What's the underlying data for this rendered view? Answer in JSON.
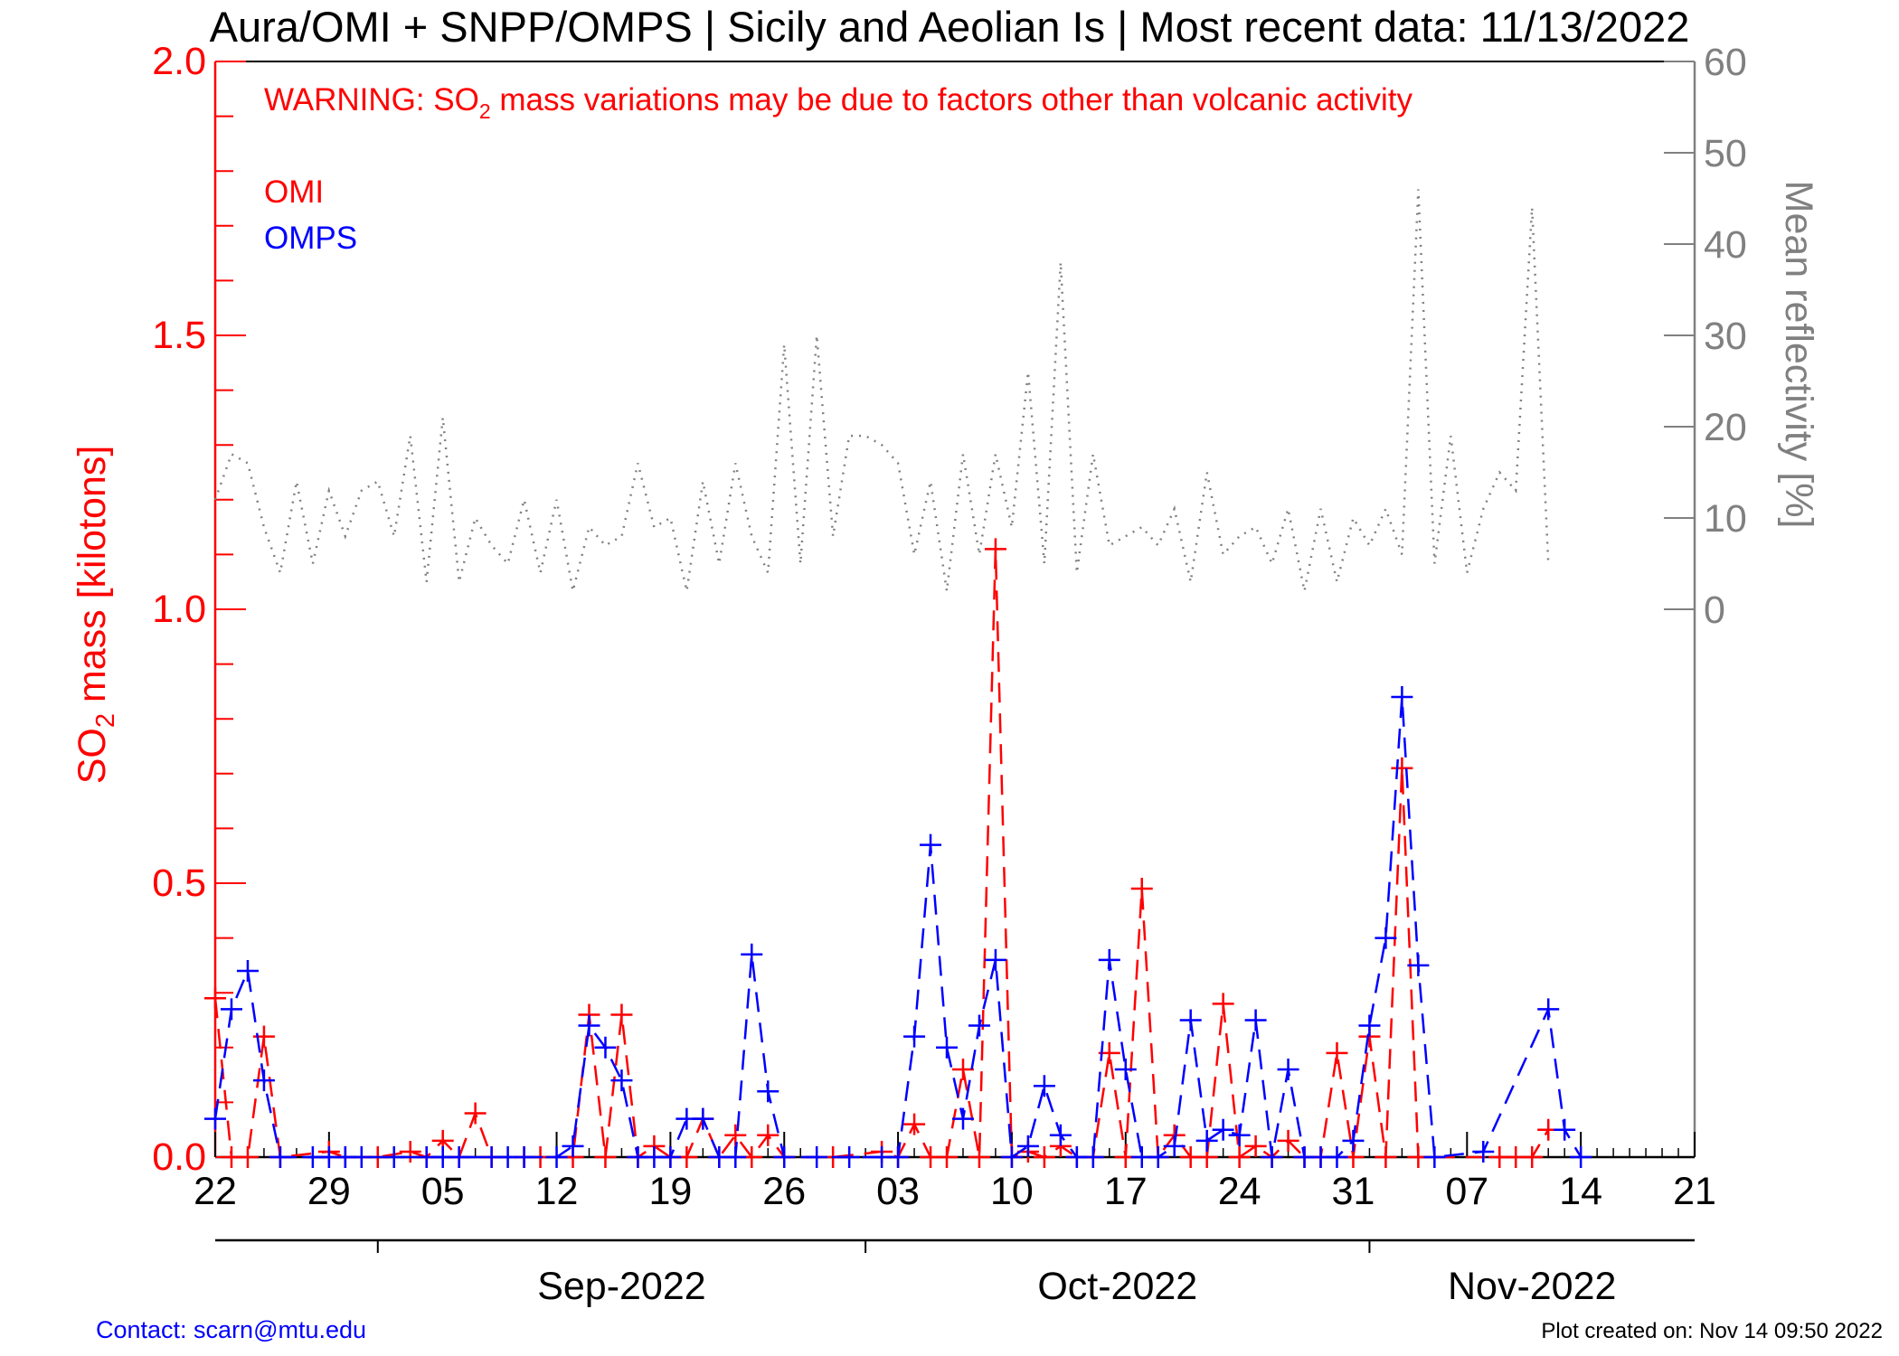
{
  "chart_data": {
    "type": "line",
    "title": "Aura/OMI + SNPP/OMPS | Sicily and Aeolian Is | Most recent data: 11/13/2022",
    "warning": {
      "prefix": "WARNING: SO",
      "subscript": "2",
      "suffix": " mass variations may be due to factors other than volcanic activity"
    },
    "ylabel_left": {
      "prefix": "SO",
      "subscript": "2",
      "suffix": " mass [kilotons]"
    },
    "ylabel_right": "Mean reflectivity [%]",
    "x_axis": {
      "range": [
        "2022-08-22",
        "2022-11-21"
      ],
      "tick_labels": [
        "22",
        "29",
        "05",
        "12",
        "19",
        "26",
        "03",
        "10",
        "17",
        "24",
        "31",
        "07",
        "14",
        "21"
      ],
      "tick_dates": [
        "2022-08-22",
        "2022-08-29",
        "2022-09-05",
        "2022-09-12",
        "2022-09-19",
        "2022-09-26",
        "2022-10-03",
        "2022-10-10",
        "2022-10-17",
        "2022-10-24",
        "2022-10-31",
        "2022-11-07",
        "2022-11-14",
        "2022-11-21"
      ],
      "month_labels": [
        "Sep-2022",
        "Oct-2022",
        "Nov-2022"
      ],
      "month_starts": [
        "2022-09-01",
        "2022-10-01",
        "2022-11-01"
      ]
    },
    "y_left": {
      "range": [
        0,
        2.0
      ],
      "tick_labels": [
        "0.0",
        "0.5",
        "1.0",
        "1.5",
        "2.0"
      ],
      "tick_values": [
        0,
        0.5,
        1.0,
        1.5,
        2.0
      ]
    },
    "y_right": {
      "range": [
        -60,
        60
      ],
      "tick_labels": [
        "0",
        "10",
        "20",
        "30",
        "40",
        "50",
        "60"
      ],
      "tick_values": [
        0,
        10,
        20,
        30,
        40,
        50,
        60
      ]
    },
    "series": [
      {
        "name": "OMI",
        "color": "#ff0000",
        "axis": "left",
        "style": "dashed",
        "marker": "plus",
        "points": [
          [
            "2022-08-22",
            0.29
          ],
          [
            "2022-08-23",
            0.0
          ],
          [
            "2022-08-24",
            0.0
          ],
          [
            "2022-08-25",
            0.22
          ],
          [
            "2022-08-26",
            0.0
          ],
          [
            "2022-08-29",
            0.01
          ],
          [
            "2022-08-30",
            0.0
          ],
          [
            "2022-09-01",
            0.0
          ],
          [
            "2022-09-03",
            0.01
          ],
          [
            "2022-09-04",
            0.0
          ],
          [
            "2022-09-05",
            0.03
          ],
          [
            "2022-09-06",
            0.0
          ],
          [
            "2022-09-07",
            0.08
          ],
          [
            "2022-09-08",
            0.0
          ],
          [
            "2022-09-10",
            0.0
          ],
          [
            "2022-09-11",
            0.0
          ],
          [
            "2022-09-13",
            0.0
          ],
          [
            "2022-09-14",
            0.26
          ],
          [
            "2022-09-15",
            0.0
          ],
          [
            "2022-09-16",
            0.26
          ],
          [
            "2022-09-17",
            0.0
          ],
          [
            "2022-09-18",
            0.02
          ],
          [
            "2022-09-19",
            0.0
          ],
          [
            "2022-09-20",
            0.0
          ],
          [
            "2022-09-21",
            0.07
          ],
          [
            "2022-09-22",
            0.0
          ],
          [
            "2022-09-23",
            0.04
          ],
          [
            "2022-09-24",
            0.0
          ],
          [
            "2022-09-25",
            0.04
          ],
          [
            "2022-09-26",
            0.0
          ],
          [
            "2022-09-29",
            0.0
          ],
          [
            "2022-10-02",
            0.01
          ],
          [
            "2022-10-03",
            0.0
          ],
          [
            "2022-10-04",
            0.06
          ],
          [
            "2022-10-05",
            0.0
          ],
          [
            "2022-10-06",
            0.0
          ],
          [
            "2022-10-07",
            0.16
          ],
          [
            "2022-10-08",
            0.0
          ],
          [
            "2022-10-09",
            1.11
          ],
          [
            "2022-10-10",
            0.0
          ],
          [
            "2022-10-11",
            0.01
          ],
          [
            "2022-10-12",
            0.0
          ],
          [
            "2022-10-13",
            0.02
          ],
          [
            "2022-10-14",
            0.0
          ],
          [
            "2022-10-15",
            0.0
          ],
          [
            "2022-10-16",
            0.19
          ],
          [
            "2022-10-17",
            0.0
          ],
          [
            "2022-10-18",
            0.49
          ],
          [
            "2022-10-19",
            0.0
          ],
          [
            "2022-10-20",
            0.04
          ],
          [
            "2022-10-21",
            0.0
          ],
          [
            "2022-10-22",
            0.0
          ],
          [
            "2022-10-23",
            0.28
          ],
          [
            "2022-10-24",
            0.0
          ],
          [
            "2022-10-25",
            0.02
          ],
          [
            "2022-10-26",
            0.0
          ],
          [
            "2022-10-27",
            0.03
          ],
          [
            "2022-10-28",
            0.0
          ],
          [
            "2022-10-29",
            0.0
          ],
          [
            "2022-10-30",
            0.19
          ],
          [
            "2022-10-31",
            0.0
          ],
          [
            "2022-11-01",
            0.22
          ],
          [
            "2022-11-02",
            0.0
          ],
          [
            "2022-11-03",
            0.71
          ],
          [
            "2022-11-04",
            0.0
          ],
          [
            "2022-11-09",
            0.0
          ],
          [
            "2022-11-10",
            0.0
          ],
          [
            "2022-11-11",
            0.0
          ],
          [
            "2022-11-12",
            0.05
          ]
        ]
      },
      {
        "name": "OMPS",
        "color": "#0000ff",
        "axis": "left",
        "style": "dashed",
        "marker": "plus",
        "points": [
          [
            "2022-08-22",
            0.07
          ],
          [
            "2022-08-23",
            0.27
          ],
          [
            "2022-08-24",
            0.34
          ],
          [
            "2022-08-25",
            0.14
          ],
          [
            "2022-08-26",
            0.0
          ],
          [
            "2022-08-28",
            0.0
          ],
          [
            "2022-08-29",
            0.0
          ],
          [
            "2022-08-30",
            0.0
          ],
          [
            "2022-08-31",
            0.0
          ],
          [
            "2022-09-02",
            0.0
          ],
          [
            "2022-09-04",
            0.0
          ],
          [
            "2022-09-05",
            0.0
          ],
          [
            "2022-09-06",
            0.0
          ],
          [
            "2022-09-08",
            0.0
          ],
          [
            "2022-09-09",
            0.0
          ],
          [
            "2022-09-10",
            0.0
          ],
          [
            "2022-09-12",
            0.0
          ],
          [
            "2022-09-13",
            0.02
          ],
          [
            "2022-09-14",
            0.24
          ],
          [
            "2022-09-15",
            0.2
          ],
          [
            "2022-09-16",
            0.14
          ],
          [
            "2022-09-17",
            0.0
          ],
          [
            "2022-09-18",
            0.0
          ],
          [
            "2022-09-19",
            0.0
          ],
          [
            "2022-09-20",
            0.07
          ],
          [
            "2022-09-21",
            0.07
          ],
          [
            "2022-09-22",
            0.0
          ],
          [
            "2022-09-23",
            0.0
          ],
          [
            "2022-09-24",
            0.37
          ],
          [
            "2022-09-25",
            0.12
          ],
          [
            "2022-09-26",
            0.0
          ],
          [
            "2022-09-28",
            0.0
          ],
          [
            "2022-09-30",
            0.0
          ],
          [
            "2022-10-02",
            0.0
          ],
          [
            "2022-10-03",
            0.0
          ],
          [
            "2022-10-04",
            0.22
          ],
          [
            "2022-10-05",
            0.57
          ],
          [
            "2022-10-06",
            0.2
          ],
          [
            "2022-10-07",
            0.07
          ],
          [
            "2022-10-08",
            0.24
          ],
          [
            "2022-10-09",
            0.36
          ],
          [
            "2022-10-10",
            0.0
          ],
          [
            "2022-10-11",
            0.02
          ],
          [
            "2022-10-12",
            0.13
          ],
          [
            "2022-10-13",
            0.04
          ],
          [
            "2022-10-14",
            0.0
          ],
          [
            "2022-10-15",
            0.0
          ],
          [
            "2022-10-16",
            0.36
          ],
          [
            "2022-10-17",
            0.16
          ],
          [
            "2022-10-18",
            0.0
          ],
          [
            "2022-10-19",
            0.0
          ],
          [
            "2022-10-20",
            0.02
          ],
          [
            "2022-10-21",
            0.25
          ],
          [
            "2022-10-22",
            0.03
          ],
          [
            "2022-10-23",
            0.05
          ],
          [
            "2022-10-24",
            0.04
          ],
          [
            "2022-10-25",
            0.25
          ],
          [
            "2022-10-26",
            0.0
          ],
          [
            "2022-10-27",
            0.16
          ],
          [
            "2022-10-28",
            0.0
          ],
          [
            "2022-10-29",
            0.0
          ],
          [
            "2022-10-30",
            0.0
          ],
          [
            "2022-10-31",
            0.03
          ],
          [
            "2022-11-01",
            0.24
          ],
          [
            "2022-11-02",
            0.4
          ],
          [
            "2022-11-03",
            0.84
          ],
          [
            "2022-11-04",
            0.35
          ],
          [
            "2022-11-05",
            0.0
          ],
          [
            "2022-11-08",
            0.01
          ],
          [
            "2022-11-12",
            0.27
          ],
          [
            "2022-11-13",
            0.05
          ],
          [
            "2022-11-14",
            0.0
          ]
        ]
      },
      {
        "name": "Mean reflectivity",
        "color": "#808080",
        "axis": "right",
        "style": "dotted",
        "marker": "none",
        "points": [
          [
            "2022-08-22",
            12
          ],
          [
            "2022-08-23",
            17
          ],
          [
            "2022-08-24",
            16
          ],
          [
            "2022-08-25",
            9
          ],
          [
            "2022-08-26",
            4
          ],
          [
            "2022-08-27",
            14
          ],
          [
            "2022-08-28",
            5
          ],
          [
            "2022-08-29",
            13
          ],
          [
            "2022-08-30",
            8
          ],
          [
            "2022-08-31",
            13
          ],
          [
            "2022-09-01",
            14
          ],
          [
            "2022-09-02",
            8
          ],
          [
            "2022-09-03",
            19
          ],
          [
            "2022-09-04",
            3
          ],
          [
            "2022-09-05",
            21
          ],
          [
            "2022-09-06",
            3
          ],
          [
            "2022-09-07",
            10
          ],
          [
            "2022-09-08",
            7
          ],
          [
            "2022-09-09",
            5
          ],
          [
            "2022-09-10",
            12
          ],
          [
            "2022-09-11",
            4
          ],
          [
            "2022-09-12",
            12
          ],
          [
            "2022-09-13",
            2
          ],
          [
            "2022-09-14",
            9
          ],
          [
            "2022-09-15",
            7
          ],
          [
            "2022-09-16",
            8
          ],
          [
            "2022-09-17",
            16
          ],
          [
            "2022-09-18",
            9
          ],
          [
            "2022-09-19",
            10
          ],
          [
            "2022-09-20",
            2
          ],
          [
            "2022-09-21",
            14
          ],
          [
            "2022-09-22",
            5
          ],
          [
            "2022-09-23",
            16
          ],
          [
            "2022-09-24",
            8
          ],
          [
            "2022-09-25",
            4
          ],
          [
            "2022-09-26",
            29
          ],
          [
            "2022-09-27",
            5
          ],
          [
            "2022-09-28",
            30
          ],
          [
            "2022-09-29",
            8
          ],
          [
            "2022-09-30",
            19
          ],
          [
            "2022-10-01",
            19
          ],
          [
            "2022-10-02",
            18
          ],
          [
            "2022-10-03",
            16
          ],
          [
            "2022-10-04",
            6
          ],
          [
            "2022-10-05",
            14
          ],
          [
            "2022-10-06",
            2
          ],
          [
            "2022-10-07",
            17
          ],
          [
            "2022-10-08",
            6
          ],
          [
            "2022-10-09",
            17
          ],
          [
            "2022-10-10",
            9
          ],
          [
            "2022-10-11",
            26
          ],
          [
            "2022-10-12",
            5
          ],
          [
            "2022-10-13",
            38
          ],
          [
            "2022-10-14",
            4
          ],
          [
            "2022-10-15",
            17
          ],
          [
            "2022-10-16",
            7
          ],
          [
            "2022-10-17",
            8
          ],
          [
            "2022-10-18",
            9
          ],
          [
            "2022-10-19",
            7
          ],
          [
            "2022-10-20",
            11
          ],
          [
            "2022-10-21",
            3
          ],
          [
            "2022-10-22",
            15
          ],
          [
            "2022-10-23",
            6
          ],
          [
            "2022-10-24",
            8
          ],
          [
            "2022-10-25",
            9
          ],
          [
            "2022-10-26",
            5
          ],
          [
            "2022-10-27",
            11
          ],
          [
            "2022-10-28",
            2
          ],
          [
            "2022-10-29",
            11
          ],
          [
            "2022-10-30",
            3
          ],
          [
            "2022-10-31",
            10
          ],
          [
            "2022-11-01",
            7
          ],
          [
            "2022-11-02",
            11
          ],
          [
            "2022-11-03",
            6
          ],
          [
            "2022-11-04",
            46
          ],
          [
            "2022-11-05",
            5
          ],
          [
            "2022-11-06",
            19
          ],
          [
            "2022-11-07",
            4
          ],
          [
            "2022-11-08",
            11
          ],
          [
            "2022-11-09",
            15
          ],
          [
            "2022-11-10",
            13
          ],
          [
            "2022-11-11",
            44
          ],
          [
            "2022-11-12",
            5
          ]
        ]
      }
    ],
    "legend": {
      "placement": "top-left",
      "entries": [
        "OMI",
        "OMPS"
      ]
    },
    "grid": false
  },
  "footer": {
    "contact": "Contact: scarn@mtu.edu",
    "created": "Plot created on: Nov 14 09:50 2022"
  }
}
